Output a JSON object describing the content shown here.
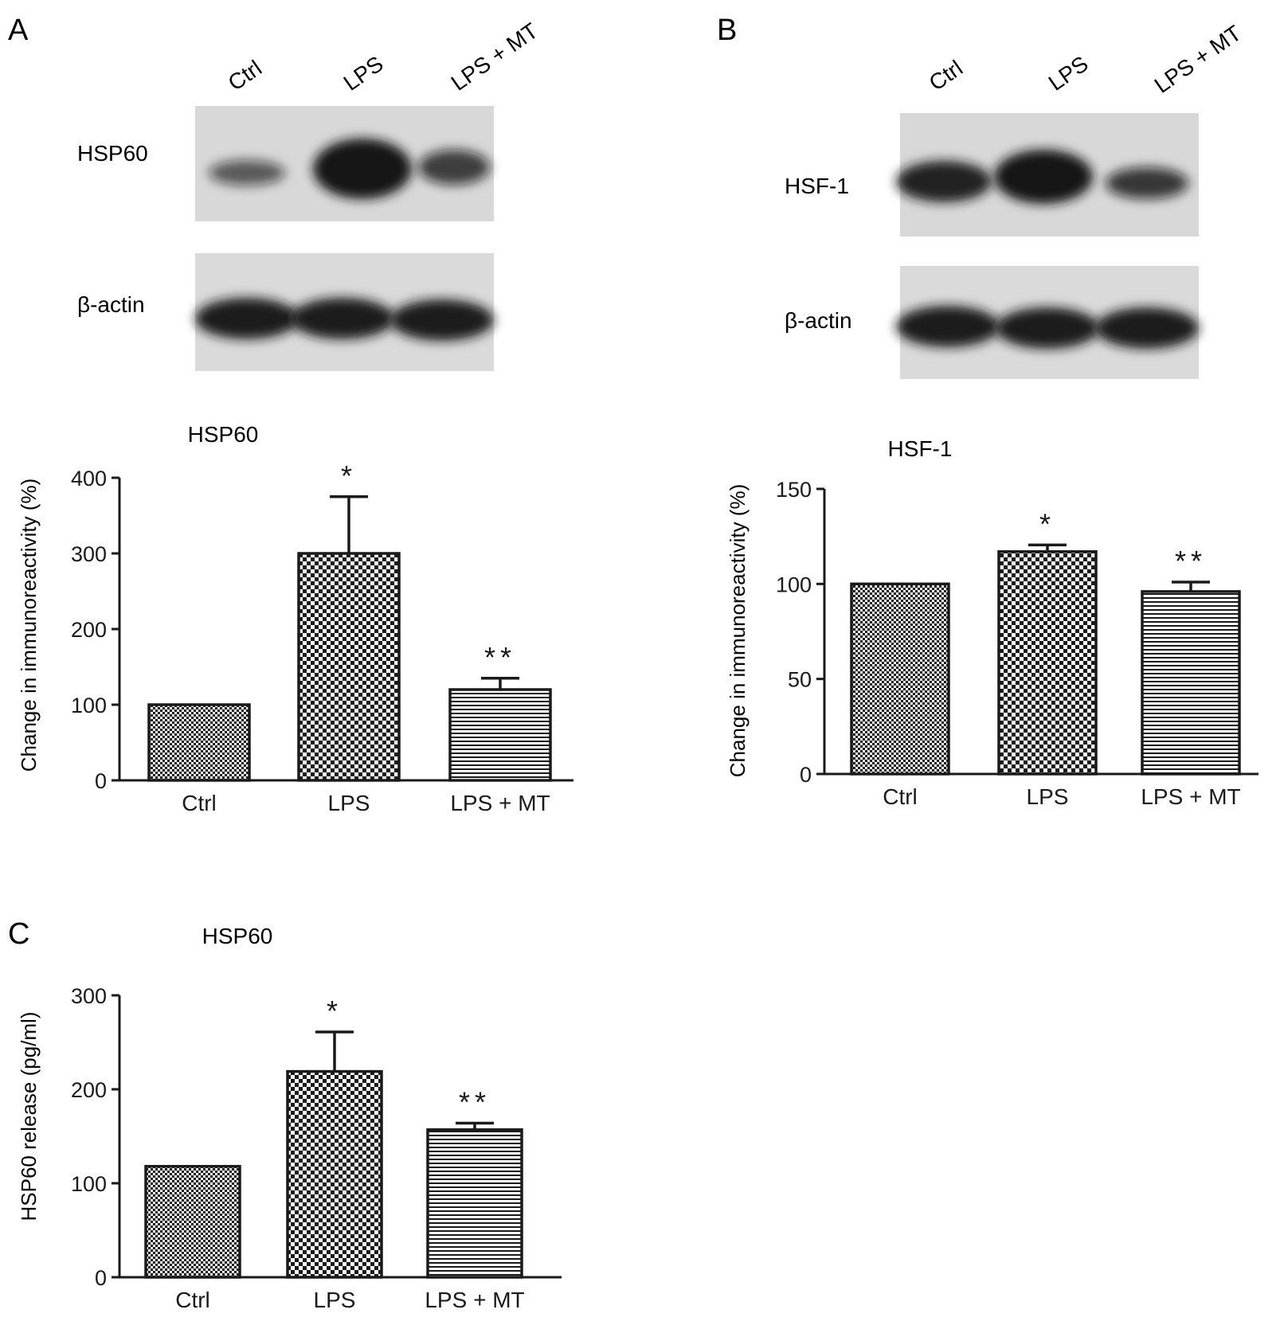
{
  "panel_labels": {
    "a": "A",
    "b": "B",
    "c": "C"
  },
  "colors": {
    "ink": "#1a1a1a",
    "background": "#ffffff",
    "blot_bg": "#d6d6d6",
    "band": "#141414"
  },
  "blots": {
    "a": {
      "lanes": [
        "Ctrl",
        "LPS",
        "LPS + MT"
      ],
      "rows": [
        {
          "label": "HSP60",
          "intensities": [
            0.45,
            1.0,
            0.65
          ]
        },
        {
          "label": "β-actin",
          "intensities": [
            0.95,
            0.95,
            0.95
          ]
        }
      ]
    },
    "b": {
      "lanes": [
        "Ctrl",
        "LPS",
        "LPS + MT"
      ],
      "rows": [
        {
          "label": "HSF-1",
          "intensities": [
            0.9,
            1.0,
            0.7
          ]
        },
        {
          "label": "β-actin",
          "intensities": [
            0.95,
            0.95,
            0.95
          ]
        }
      ]
    }
  },
  "chart_data": [
    {
      "type": "bar",
      "panel": "A",
      "title": "HSP60",
      "xlabel": "",
      "ylabel": "Change in immunoreactivity (%)",
      "categories": [
        "Ctrl",
        "LPS",
        "LPS + MT"
      ],
      "values": [
        100,
        300,
        120
      ],
      "errors": [
        0,
        75,
        15
      ],
      "significance": [
        "",
        "*",
        "**"
      ],
      "patterns": [
        "fine-check",
        "check",
        "stripes"
      ],
      "ylim": [
        0,
        400
      ],
      "yticks": [
        0,
        100,
        200,
        300,
        400
      ],
      "grid": false,
      "legend": "none"
    },
    {
      "type": "bar",
      "panel": "B",
      "title": "HSF-1",
      "xlabel": "",
      "ylabel": "Change in immunoreactivity (%)",
      "categories": [
        "Ctrl",
        "LPS",
        "LPS + MT"
      ],
      "values": [
        100,
        117,
        96
      ],
      "errors": [
        0,
        3.5,
        5
      ],
      "significance": [
        "",
        "*",
        "**"
      ],
      "patterns": [
        "fine-check",
        "check",
        "stripes"
      ],
      "ylim": [
        0,
        150
      ],
      "yticks": [
        0,
        50,
        100,
        150
      ],
      "grid": false,
      "legend": "none"
    },
    {
      "type": "bar",
      "panel": "C",
      "title": "HSP60",
      "xlabel": "",
      "ylabel": "HSP60 release (pg/ml)",
      "categories": [
        "Ctrl",
        "LPS",
        "LPS + MT"
      ],
      "values": [
        118,
        219,
        157
      ],
      "errors": [
        0,
        42,
        7
      ],
      "significance": [
        "",
        "*",
        "**"
      ],
      "patterns": [
        "fine-check",
        "check",
        "stripes"
      ],
      "ylim": [
        0,
        300
      ],
      "yticks": [
        0,
        100,
        200,
        300
      ],
      "grid": false,
      "legend": "none"
    }
  ]
}
